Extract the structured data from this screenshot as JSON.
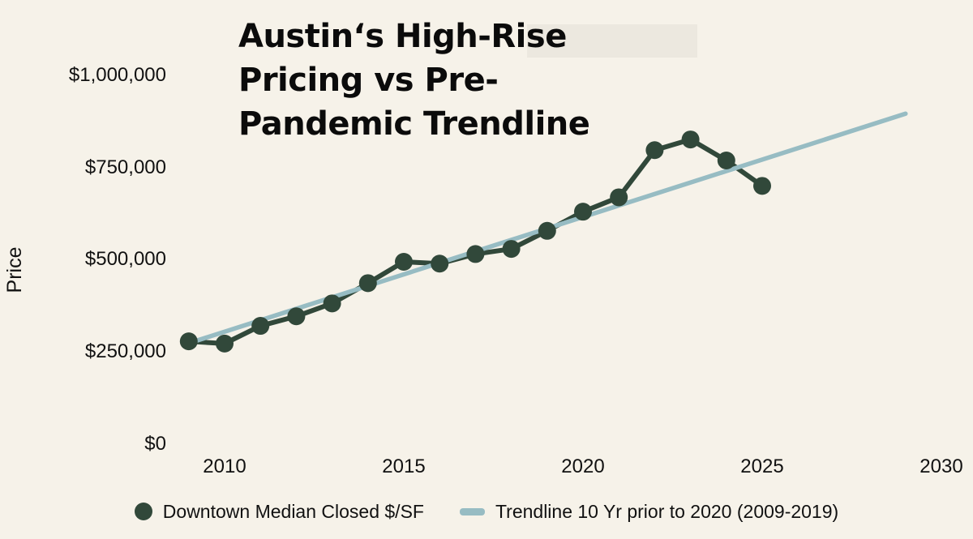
{
  "page": {
    "background": "#f6f2e9",
    "text_color": "#111111"
  },
  "chart_data": {
    "type": "line",
    "title": "Austin‘s High-Rise Pricing vs Pre-Pandemic Trendline",
    "title_lines": [
      "Austin‘s High-Rise",
      "Pricing vs Pre-",
      "Pandemic Trendline"
    ],
    "xlabel": "",
    "ylabel": "Price",
    "xlim": [
      2008.5,
      2030.8
    ],
    "ylim": [
      0,
      1100000
    ],
    "grid": false,
    "legend_position": "bottom",
    "x_ticks": [
      {
        "label": "2010",
        "value": 2010
      },
      {
        "label": "2015",
        "value": 2015
      },
      {
        "label": "2020",
        "value": 2020
      },
      {
        "label": "2025",
        "value": 2025
      },
      {
        "label": "2030",
        "value": 2030
      }
    ],
    "y_ticks": [
      {
        "label": "$1,000,000",
        "value": 1000000
      },
      {
        "label": "$750,000",
        "value": 750000
      },
      {
        "label": "$500,000",
        "value": 500000
      },
      {
        "label": "$250,000",
        "value": 250000
      },
      {
        "label": "$0",
        "value": 0
      }
    ],
    "series": [
      {
        "name": "Downtown Median Closed $/SF",
        "type": "line+markers",
        "color": "#31483a",
        "x": [
          2009,
          2010,
          2011,
          2012,
          2013,
          2014,
          2015,
          2016,
          2017,
          2018,
          2019,
          2020,
          2021,
          2022,
          2023,
          2024,
          2025
        ],
        "values": [
          278000,
          272000,
          320000,
          346000,
          381000,
          436000,
          494000,
          489000,
          515000,
          529000,
          578000,
          630000,
          669000,
          797000,
          826000,
          769000,
          700000
        ]
      },
      {
        "name": "Trendline 10 Yr prior to 2020 (2009-2019)",
        "type": "line",
        "color": "#97bcc3",
        "x": [
          2009,
          2029
        ],
        "values": [
          273000,
          896000
        ]
      }
    ],
    "legend": [
      {
        "label": "Downtown Median Closed $/SF",
        "marker": "dot",
        "color": "#31483a"
      },
      {
        "label": "Trendline 10 Yr prior to 2020 (2009-2019)",
        "marker": "line",
        "color": "#97bcc3"
      }
    ]
  }
}
